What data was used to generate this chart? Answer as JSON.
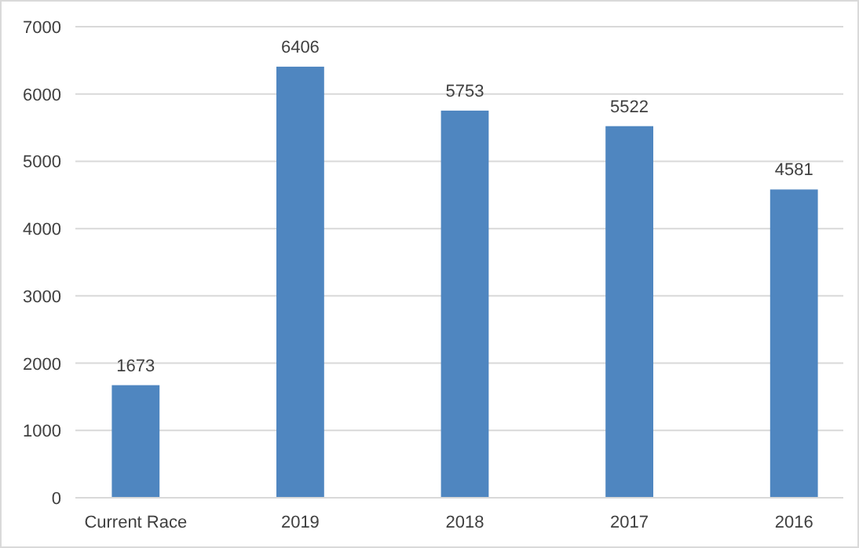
{
  "chart_data": {
    "type": "bar",
    "categories": [
      "Current Race",
      "2019",
      "2018",
      "2017",
      "2016"
    ],
    "values": [
      1673,
      6406,
      5753,
      5522,
      4581
    ],
    "color": "#4f86c0",
    "ylim": [
      0,
      7000
    ],
    "yticks": [
      0,
      1000,
      2000,
      3000,
      4000,
      5000,
      6000,
      7000
    ],
    "grid": "y",
    "data_labels": true
  }
}
